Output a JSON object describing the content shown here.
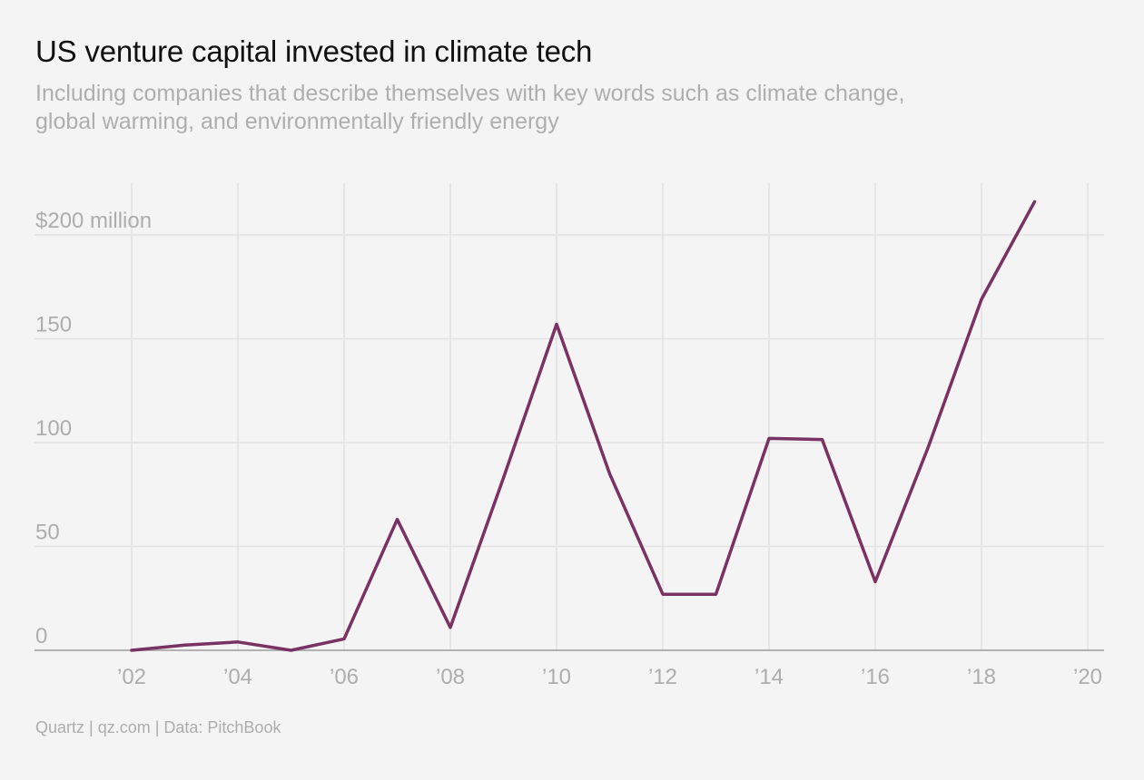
{
  "chart_data": {
    "type": "line",
    "title": "US venture capital invested in climate tech",
    "subtitle": "Including companies that describe themselves with key words such as climate change,\nglobal warming, and environmentally friendly energy",
    "source": "Quartz | qz.com | Data: PitchBook",
    "x": [
      2002,
      2003,
      2004,
      2005,
      2006,
      2007,
      2008,
      2009,
      2010,
      2011,
      2012,
      2013,
      2014,
      2015,
      2016,
      2017,
      2018,
      2019
    ],
    "series": [
      {
        "values": [
          0,
          2.5,
          4,
          0,
          5.5,
          63,
          11,
          83,
          157,
          85,
          27,
          27,
          102,
          101.5,
          33,
          98,
          169,
          216
        ]
      }
    ],
    "xlim": [
      2002,
      2020
    ],
    "ylim": [
      0,
      200
    ],
    "x_ticks": [
      2002,
      2004,
      2006,
      2008,
      2010,
      2012,
      2014,
      2016,
      2018,
      2020
    ],
    "x_tick_labels": [
      "’02",
      "’04",
      "’06",
      "’08",
      "’10",
      "’12",
      "’14",
      "’16",
      "’18",
      "’20"
    ],
    "y_ticks": [
      0,
      50,
      100,
      150,
      200
    ],
    "y_tick_labels": [
      "0",
      "50",
      "100",
      "150",
      "$200 million"
    ],
    "grid": true,
    "colors": {
      "line": "#7a3163",
      "grid": "#e2e2e2",
      "axis": "#a9a9a9",
      "label": "#adadad",
      "background": "#f4f4f4"
    }
  }
}
